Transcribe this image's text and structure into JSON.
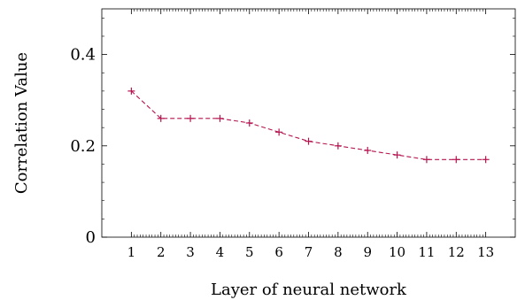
{
  "chart_data": {
    "type": "line",
    "title": "",
    "xlabel": "Layer of neural network",
    "ylabel": "Correlation Value",
    "x": [
      1,
      2,
      3,
      4,
      5,
      6,
      7,
      8,
      9,
      10,
      11,
      12,
      13
    ],
    "xtick_labels": [
      "1",
      "2",
      "3",
      "4",
      "5",
      "6",
      "7",
      "8",
      "9",
      "10",
      "11",
      "12",
      "13"
    ],
    "ytick_labels": [
      "0",
      "0.2",
      "0.4"
    ],
    "yticks": [
      0,
      0.2,
      0.4
    ],
    "xlim": [
      0,
      14
    ],
    "ylim": [
      0,
      0.5
    ],
    "grid": false,
    "series": [
      {
        "values": [
          0.32,
          0.26,
          0.26,
          0.26,
          0.25,
          0.23,
          0.21,
          0.2,
          0.19,
          0.18,
          0.17,
          0.17,
          0.17
        ],
        "color": "#b5124e",
        "line_style": "dashed",
        "marker": "plus"
      }
    ]
  }
}
